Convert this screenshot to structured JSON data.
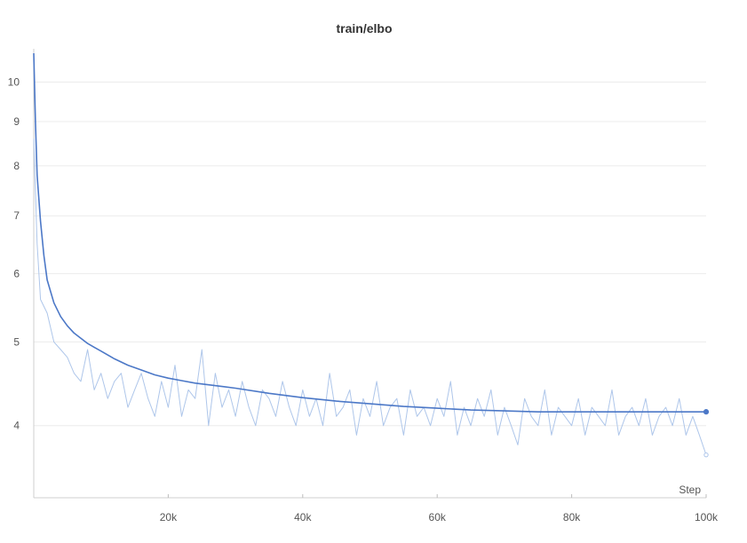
{
  "chart_data": {
    "type": "line",
    "title": "train/elbo",
    "xlabel": "Step",
    "ylabel": "",
    "xlim": [
      0,
      100000
    ],
    "ylim": [
      3.3,
      10.8
    ],
    "y_scale": "log",
    "grid": "horizontal",
    "x_ticks": [
      {
        "value": 20000,
        "label": "20k"
      },
      {
        "value": 40000,
        "label": "40k"
      },
      {
        "value": 60000,
        "label": "60k"
      },
      {
        "value": 80000,
        "label": "80k"
      },
      {
        "value": 100000,
        "label": "100k"
      }
    ],
    "y_ticks": [
      {
        "value": 4,
        "label": "4"
      },
      {
        "value": 5,
        "label": "5"
      },
      {
        "value": 6,
        "label": "6"
      },
      {
        "value": 7,
        "label": "7"
      },
      {
        "value": 8,
        "label": "8"
      },
      {
        "value": 9,
        "label": "9"
      },
      {
        "value": 10,
        "label": "10"
      }
    ],
    "series": [
      {
        "role": "raw",
        "color": "#aec6ea",
        "x": [
          0,
          500,
          1000,
          2000,
          3000,
          4000,
          5000,
          6000,
          7000,
          8000,
          9000,
          10000,
          11000,
          12000,
          13000,
          14000,
          15000,
          16000,
          17000,
          18000,
          19000,
          20000,
          21000,
          22000,
          23000,
          24000,
          25000,
          26000,
          27000,
          28000,
          29000,
          30000,
          31000,
          32000,
          33000,
          34000,
          35000,
          36000,
          37000,
          38000,
          39000,
          40000,
          41000,
          42000,
          43000,
          44000,
          45000,
          46000,
          47000,
          48000,
          49000,
          50000,
          51000,
          52000,
          53000,
          54000,
          55000,
          56000,
          57000,
          58000,
          59000,
          60000,
          61000,
          62000,
          63000,
          64000,
          65000,
          66000,
          67000,
          68000,
          69000,
          70000,
          71000,
          72000,
          73000,
          74000,
          75000,
          76000,
          77000,
          78000,
          79000,
          80000,
          81000,
          82000,
          83000,
          84000,
          85000,
          86000,
          87000,
          88000,
          89000,
          90000,
          91000,
          92000,
          93000,
          94000,
          95000,
          96000,
          97000,
          98000,
          99000,
          100000
        ],
        "y": [
          8.6,
          6.5,
          5.6,
          5.4,
          5.0,
          4.9,
          4.8,
          4.6,
          4.5,
          4.9,
          4.4,
          4.6,
          4.3,
          4.5,
          4.6,
          4.2,
          4.4,
          4.6,
          4.3,
          4.1,
          4.5,
          4.2,
          4.7,
          4.1,
          4.4,
          4.3,
          4.9,
          4.0,
          4.6,
          4.2,
          4.4,
          4.1,
          4.5,
          4.2,
          4.0,
          4.4,
          4.3,
          4.1,
          4.5,
          4.2,
          4.0,
          4.4,
          4.1,
          4.3,
          4.0,
          4.6,
          4.1,
          4.2,
          4.4,
          3.9,
          4.3,
          4.1,
          4.5,
          4.0,
          4.2,
          4.3,
          3.9,
          4.4,
          4.1,
          4.2,
          4.0,
          4.3,
          4.1,
          4.5,
          3.9,
          4.2,
          4.0,
          4.3,
          4.1,
          4.4,
          3.9,
          4.2,
          4.0,
          3.8,
          4.3,
          4.1,
          4.0,
          4.4,
          3.9,
          4.2,
          4.1,
          4.0,
          4.3,
          3.9,
          4.2,
          4.1,
          4.0,
          4.4,
          3.9,
          4.1,
          4.2,
          4.0,
          4.3,
          3.9,
          4.1,
          4.2,
          4.0,
          4.3,
          3.9,
          4.1,
          3.9,
          3.7
        ]
      },
      {
        "role": "smoothed",
        "color": "#4c78c7",
        "x": [
          0,
          250,
          500,
          1000,
          1500,
          2000,
          3000,
          4000,
          5000,
          6000,
          7000,
          8000,
          9000,
          10000,
          12000,
          14000,
          16000,
          18000,
          20000,
          22000,
          24000,
          26000,
          28000,
          30000,
          35000,
          40000,
          45000,
          50000,
          55000,
          60000,
          65000,
          70000,
          75000,
          80000,
          85000,
          90000,
          95000,
          100000
        ],
        "y": [
          10.8,
          9.0,
          7.8,
          6.9,
          6.3,
          5.9,
          5.55,
          5.35,
          5.22,
          5.12,
          5.05,
          4.98,
          4.93,
          4.88,
          4.78,
          4.7,
          4.64,
          4.58,
          4.54,
          4.51,
          4.48,
          4.46,
          4.44,
          4.42,
          4.36,
          4.31,
          4.27,
          4.24,
          4.21,
          4.19,
          4.17,
          4.16,
          4.15,
          4.15,
          4.15,
          4.15,
          4.15,
          4.15
        ]
      }
    ]
  }
}
